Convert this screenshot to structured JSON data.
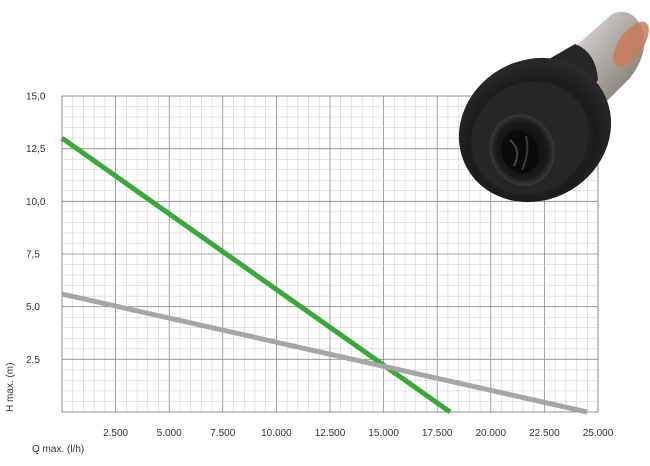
{
  "chart_data": {
    "type": "line",
    "xlabel": "Q max. (l/h)",
    "ylabel": "H max. (m)",
    "xlim": [
      0,
      25000
    ],
    "ylim": [
      0,
      15
    ],
    "x_ticks": [
      2500,
      5000,
      7500,
      10000,
      12500,
      15000,
      17500,
      20000,
      22500,
      25000
    ],
    "x_tick_labels": [
      "2.500",
      "5.000",
      "7.500",
      "10.000",
      "12.500",
      "15.000",
      "17.500",
      "20.000",
      "22.500",
      "25.000"
    ],
    "y_ticks": [
      2.5,
      5,
      7.5,
      10,
      12.5,
      15
    ],
    "y_tick_labels": [
      "2,5",
      "5,0",
      "7,5",
      "10,0",
      "12,5",
      "15,0"
    ],
    "grid": true,
    "series": [
      {
        "color": "#3aa83a",
        "x": [
          0,
          18100
        ],
        "y": [
          13.0,
          0
        ]
      },
      {
        "color": "#a6a6a6",
        "x": [
          0,
          24500
        ],
        "y": [
          5.6,
          0
        ]
      }
    ],
    "colors": {
      "grid_minor": "#c8c8c8",
      "grid_major": "#8a8a8a",
      "text": "#333333"
    },
    "image": {
      "icon": "pump-impeller-icon"
    }
  }
}
